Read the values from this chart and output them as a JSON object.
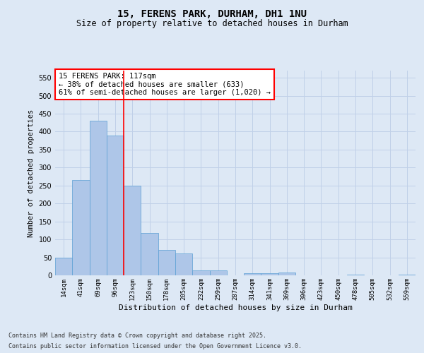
{
  "title": "15, FERENS PARK, DURHAM, DH1 1NU",
  "subtitle": "Size of property relative to detached houses in Durham",
  "xlabel": "Distribution of detached houses by size in Durham",
  "ylabel": "Number of detached properties",
  "footer_line1": "Contains HM Land Registry data © Crown copyright and database right 2025.",
  "footer_line2": "Contains public sector information licensed under the Open Government Licence v3.0.",
  "categories": [
    "14sqm",
    "41sqm",
    "69sqm",
    "96sqm",
    "123sqm",
    "150sqm",
    "178sqm",
    "205sqm",
    "232sqm",
    "259sqm",
    "287sqm",
    "314sqm",
    "341sqm",
    "369sqm",
    "396sqm",
    "423sqm",
    "450sqm",
    "478sqm",
    "505sqm",
    "532sqm",
    "559sqm"
  ],
  "values": [
    50,
    265,
    430,
    390,
    250,
    117,
    70,
    60,
    14,
    13,
    0,
    5,
    6,
    7,
    0,
    0,
    0,
    1,
    0,
    0,
    1
  ],
  "bar_color": "#aec6e8",
  "bar_edge_color": "#5a9fd4",
  "grid_color": "#c0d0e8",
  "background_color": "#dde8f5",
  "vline_color": "red",
  "vline_index": 3,
  "annotation_text": "15 FERENS PARK: 117sqm\n← 38% of detached houses are smaller (633)\n61% of semi-detached houses are larger (1,020) →",
  "annotation_box_color": "red",
  "ylim": [
    0,
    570
  ],
  "yticks": [
    0,
    50,
    100,
    150,
    200,
    250,
    300,
    350,
    400,
    450,
    500,
    550
  ]
}
